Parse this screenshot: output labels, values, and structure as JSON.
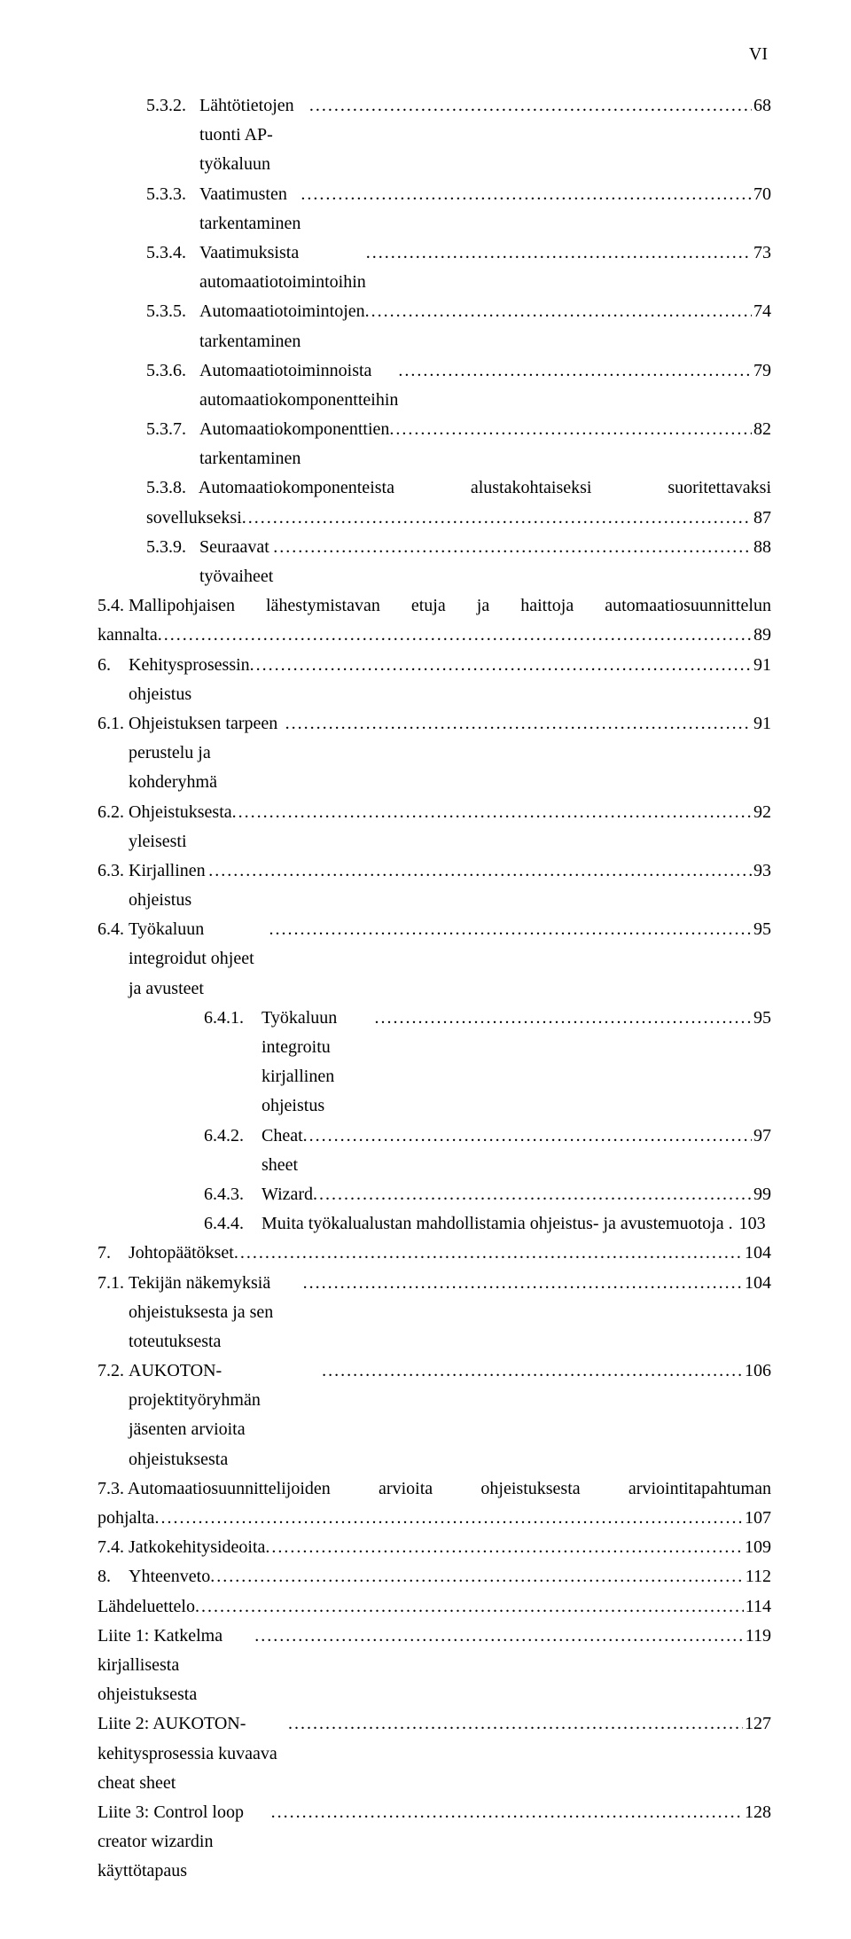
{
  "page_header": "VI",
  "entries": [
    {
      "indent": "i1",
      "label": "5.3.2.   ",
      "title": "Lähtötietojen tuonti AP-työkaluun",
      "page": "68"
    },
    {
      "indent": "i1",
      "label": "5.3.3.   ",
      "title": "Vaatimusten tarkentaminen",
      "page": "70"
    },
    {
      "indent": "i1",
      "label": "5.3.4.   ",
      "title": "Vaatimuksista automaatiotoimintoihin",
      "page": "73"
    },
    {
      "indent": "i1",
      "label": "5.3.5.   ",
      "title": "Automaatiotoimintojen tarkentaminen",
      "page": "74"
    },
    {
      "indent": "i1",
      "label": "5.3.6.   ",
      "title": "Automaatiotoiminnoista automaatiokomponentteihin",
      "page": "79"
    },
    {
      "indent": "i1",
      "label": "5.3.7.   ",
      "title": "Automaatiokomponenttien tarkentaminen",
      "page": "82"
    },
    {
      "indent": "i1",
      "type": "multi",
      "label": "5.3.8.   ",
      "line1_parts": [
        "Automaatiokomponenteista",
        "alustakohtaiseksi",
        "suoritettavaksi"
      ],
      "line2": "sovellukseksi",
      "page": "87"
    },
    {
      "indent": "i1",
      "label": "5.3.9.   ",
      "title": "Seuraavat työvaiheet",
      "page": "88"
    },
    {
      "indent": "i0",
      "type": "multi",
      "label": "5.4. ",
      "line1_parts": [
        "Mallipohjaisen",
        "lähestymistavan",
        "etuja",
        "ja",
        "haittoja",
        "automaatiosuunnittelun"
      ],
      "line2": "kannalta",
      "page": "89"
    },
    {
      "indent": "i0b",
      "label": "6.    ",
      "title": "Kehitysprosessin ohjeistus",
      "page": "91"
    },
    {
      "indent": "i0",
      "label": "6.1. ",
      "title": "Ohjeistuksen tarpeen perustelu ja kohderyhmä",
      "page": "91"
    },
    {
      "indent": "i0",
      "label": "6.2. ",
      "title": "Ohjeistuksesta yleisesti",
      "page": "92"
    },
    {
      "indent": "i0",
      "label": "6.3. ",
      "title": "Kirjallinen ohjeistus",
      "page": "93"
    },
    {
      "indent": "i0",
      "label": "6.4. ",
      "title": "Työkaluun integroidut ohjeet ja avusteet",
      "page": "95"
    },
    {
      "indent": "i2",
      "label": "6.4.1.    ",
      "title": "Työkaluun integroitu kirjallinen ohjeistus",
      "page": "95"
    },
    {
      "indent": "i2",
      "label": "6.4.2.    ",
      "title": "Cheat sheet",
      "page": "97"
    },
    {
      "indent": "i2",
      "label": "6.4.3.    ",
      "title": "Wizard",
      "page": "99"
    },
    {
      "indent": "i2",
      "label": "6.4.4.    ",
      "title": "Muita työkalualustan mahdollistamia ohjeistus- ja avustemuotoja",
      "page": "103",
      "nodots": true,
      "sep": " . "
    },
    {
      "indent": "i0b",
      "label": "7.    ",
      "title": "Johtopäätökset",
      "page": "104"
    },
    {
      "indent": "i0",
      "label": "7.1. ",
      "title": "Tekijän näkemyksiä ohjeistuksesta ja sen toteutuksesta",
      "page": "104"
    },
    {
      "indent": "i0",
      "label": "7.2. ",
      "title": "AUKOTON-projektityöryhmän jäsenten arvioita ohjeistuksesta",
      "page": "106"
    },
    {
      "indent": "i0",
      "type": "multi",
      "label": "7.3. ",
      "line1_parts": [
        "Automaatiosuunnittelijoiden",
        "arvioita",
        "ohjeistuksesta",
        "arviointitapahtuman"
      ],
      "line2": "pohjalta",
      "page": "107"
    },
    {
      "indent": "i0",
      "label": "7.4. ",
      "title": "Jatkokehitysideoita",
      "page": "109"
    },
    {
      "indent": "i0b",
      "label": "8.    ",
      "title": "Yhteenveto",
      "page": "112"
    },
    {
      "indent": "i0b",
      "label": "",
      "title": "Lähdeluettelo",
      "page": "114"
    },
    {
      "indent": "i0b",
      "label": "",
      "title": "Liite 1: Katkelma kirjallisesta ohjeistuksesta",
      "page": "119"
    },
    {
      "indent": "i0b",
      "label": "",
      "title": "Liite 2: AUKOTON-kehitysprosessia kuvaava cheat sheet",
      "page": "127"
    },
    {
      "indent": "i0b",
      "label": "",
      "title": "Liite 3: Control loop creator wizardin käyttötapaus",
      "page": "128"
    }
  ]
}
